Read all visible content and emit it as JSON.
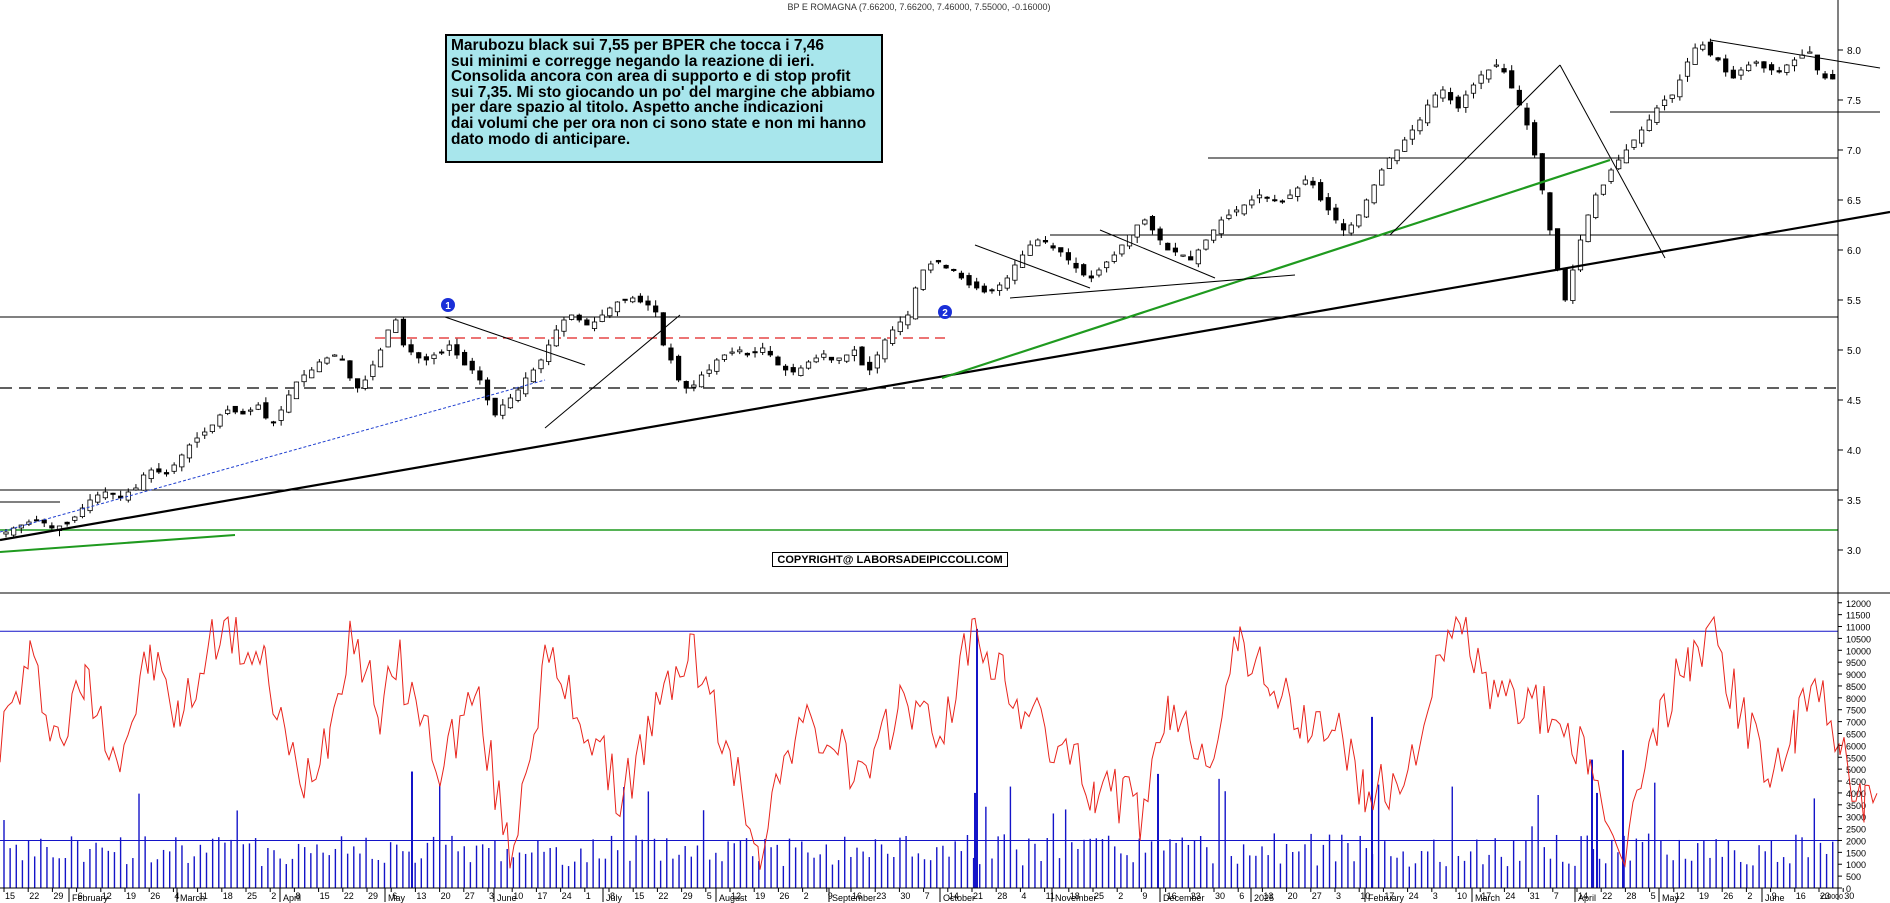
{
  "header": {
    "title": "BP E ROMAGNA (7.66200, 7.66200, 7.46000, 7.55000, -0.16000)"
  },
  "note": {
    "lines": [
      "Marubozu black sui 7,55 per BPER che tocca i 7,46",
      "sui minimi e corregge negando la reazione di ieri.",
      "Consolida ancora con area di supporto e di stop profit",
      "sui 7,35. Mi sto giocando un po' del margine che abbiamo",
      "per dare spazio al titolo. Aspetto anche indicazioni",
      "dai volumi che per ora non ci sono state e non mi hanno",
      "dato modo di anticipare."
    ]
  },
  "copyright": "COPYRIGHT@ LABORSADEIPICCOLI.COM",
  "colors": {
    "indicator": "#e8241c",
    "volume": "#1414c8",
    "trend_green": "#1f9a1f",
    "dashed_red": "#e02020",
    "note_bg": "#a8e6ec"
  },
  "chart_data": [
    {
      "type": "candlestick",
      "title": "BP E ROMAGNA",
      "ohlc_last": {
        "open": 7.662,
        "high": 7.662,
        "low": 7.46,
        "close": 7.55,
        "change": -0.16
      },
      "y_ticks": [
        "3.0",
        "3.5",
        "4.0",
        "4.5",
        "5.0",
        "5.5",
        "6.0",
        "6.5",
        "7.0",
        "7.5",
        "8.0"
      ],
      "ylim": [
        2.6,
        8.4
      ],
      "month_labels": [
        "February",
        "March",
        "April",
        "May",
        "June",
        "July",
        "August",
        "September",
        "October",
        "November",
        "December",
        "2025",
        "February",
        "March",
        "April",
        "May",
        "June"
      ],
      "day_labels": [
        "15",
        "22",
        "29",
        "6",
        "12",
        "19",
        "26",
        "4",
        "11",
        "18",
        "25",
        "2",
        "8",
        "15",
        "22",
        "29",
        "6",
        "13",
        "20",
        "27",
        "3",
        "10",
        "17",
        "24",
        "1",
        "8",
        "15",
        "22",
        "29",
        "5",
        "12",
        "19",
        "26",
        "2",
        "9",
        "16",
        "23",
        "30",
        "7",
        "14",
        "21",
        "28",
        "4",
        "11",
        "18",
        "25",
        "2",
        "9",
        "16",
        "23",
        "30",
        "6",
        "13",
        "20",
        "27",
        "3",
        "10",
        "17",
        "24",
        "3",
        "10",
        "17",
        "24",
        "31",
        "7",
        "14",
        "22",
        "28",
        "5",
        "12",
        "19",
        "26",
        "2",
        "9",
        "16",
        "23",
        "30"
      ],
      "close": [
        3.18,
        3.22,
        3.25,
        3.28,
        3.3,
        3.27,
        3.22,
        3.24,
        3.26,
        3.33,
        3.42,
        3.5,
        3.55,
        3.58,
        3.56,
        3.52,
        3.58,
        3.62,
        3.75,
        3.8,
        3.78,
        3.76,
        3.85,
        3.95,
        4.05,
        4.12,
        4.18,
        4.25,
        4.35,
        4.4,
        4.38,
        4.36,
        4.4,
        4.45,
        4.32,
        4.28,
        4.4,
        4.55,
        4.68,
        4.75,
        4.8,
        4.88,
        4.92,
        4.95,
        4.9,
        4.72,
        4.62,
        4.7,
        4.85,
        5.0,
        5.2,
        5.3,
        5.05,
        4.98,
        4.92,
        4.9,
        4.95,
        4.98,
        5.05,
        4.95,
        4.85,
        4.8,
        4.7,
        4.5,
        4.35,
        4.45,
        4.52,
        4.6,
        4.72,
        4.8,
        4.9,
        5.05,
        5.2,
        5.3,
        5.35,
        5.3,
        5.25,
        5.28,
        5.35,
        5.42,
        5.48,
        5.5,
        5.52,
        5.48,
        5.45,
        5.38,
        5.05,
        4.9,
        4.7,
        4.62,
        4.65,
        4.75,
        4.8,
        4.9,
        4.95,
        4.98,
        5.0,
        4.95,
        4.98,
        5.02,
        4.95,
        4.85,
        4.8,
        4.78,
        4.82,
        4.88,
        4.92,
        4.96,
        4.9,
        4.92,
        4.95,
        5.0,
        4.85,
        4.8,
        4.95,
        5.1,
        5.2,
        5.28,
        5.35,
        5.62,
        5.8,
        5.86,
        5.88,
        5.82,
        5.8,
        5.72,
        5.65,
        5.62,
        5.58,
        5.6,
        5.65,
        5.72,
        5.85,
        5.95,
        6.05,
        6.1,
        6.08,
        6.02,
        5.98,
        5.9,
        5.82,
        5.75,
        5.72,
        5.8,
        5.88,
        5.95,
        6.05,
        6.15,
        6.25,
        6.3,
        6.2,
        6.1,
        6.0,
        5.98,
        5.95,
        5.9,
        6.0,
        6.1,
        6.2,
        6.3,
        6.35,
        6.4,
        6.45,
        6.5,
        6.55,
        6.52,
        6.5,
        6.48,
        6.55,
        6.62,
        6.7,
        6.65,
        6.5,
        6.4,
        6.3,
        6.2,
        6.25,
        6.35,
        6.5,
        6.65,
        6.8,
        6.92,
        7.0,
        7.1,
        7.2,
        7.3,
        7.45,
        7.55,
        7.6,
        7.5,
        7.42,
        7.55,
        7.65,
        7.75,
        7.8,
        7.85,
        7.78,
        7.62,
        7.45,
        7.25,
        6.95,
        6.6,
        6.2,
        5.8,
        5.5,
        5.8,
        6.1,
        6.35,
        6.55,
        6.65,
        6.8,
        6.9,
        7.0,
        7.1,
        7.2,
        7.3,
        7.42,
        7.5,
        7.55,
        7.7,
        7.88,
        8.02,
        8.05,
        7.95,
        7.9,
        7.78,
        7.72,
        7.8,
        7.85,
        7.88,
        7.82,
        7.8,
        7.78,
        7.85,
        7.9,
        7.95,
        7.98,
        7.8,
        7.72,
        7.71,
        7.55
      ],
      "horizontal_lines": [
        5.33,
        4.62,
        3.6,
        3.2,
        6.92,
        6.15,
        7.38
      ],
      "dashed_levels": [
        4.65,
        5.12
      ],
      "annotations": [
        "1",
        "2"
      ]
    },
    {
      "type": "line+bar",
      "series": [
        {
          "values": []
        }
      ],
      "volume_y_ticks": [
        "0",
        "500",
        "1000",
        "1500",
        "2000",
        "2500",
        "3000",
        "3500",
        "4000",
        "4500",
        "5000",
        "5500",
        "6000",
        "6500",
        "7000",
        "7500",
        "8000",
        "8500",
        "9000",
        "9500",
        "10000",
        "10500",
        "11000",
        "11500",
        "12000"
      ],
      "ylim": [
        0,
        12200
      ],
      "upper_level": 10800,
      "lower_level": 2000,
      "bottom_tag": "x10000"
    }
  ]
}
